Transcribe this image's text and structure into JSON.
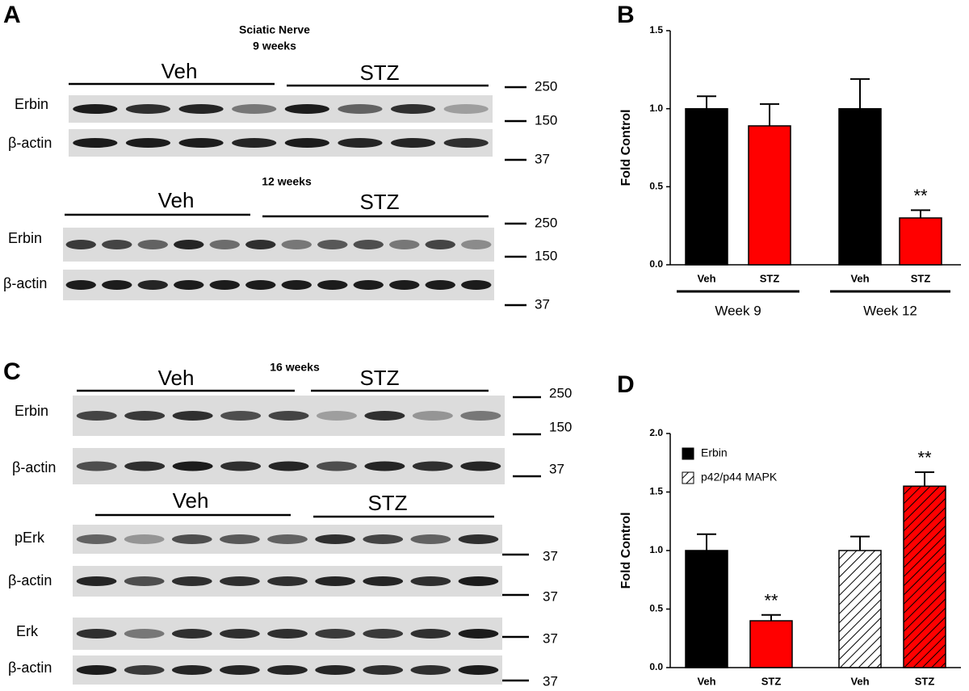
{
  "panel_labels": [
    "A",
    "B",
    "C",
    "D"
  ],
  "blots": [
    {
      "title": "Sciatic Nerve",
      "subtitle": "9 weeks",
      "groups": [
        "Veh",
        "STZ"
      ],
      "rows": [
        "Erbin",
        "β-actin"
      ],
      "markers": [
        250,
        150,
        37
      ]
    },
    {
      "subtitle": "12 weeks",
      "groups": [
        "Veh",
        "STZ"
      ],
      "rows": [
        "Erbin",
        "β-actin"
      ],
      "markers": [
        250,
        150,
        37
      ]
    },
    {
      "subtitle": "16 weeks",
      "groups": [
        "Veh",
        "STZ"
      ],
      "rows": [
        "Erbin",
        "β-actin"
      ],
      "markers": [
        250,
        150,
        37
      ]
    },
    {
      "groups": [
        "Veh",
        "STZ"
      ],
      "rows": [
        "pErk",
        "β-actin",
        "Erk",
        "β-actin"
      ],
      "markers": [
        37,
        37,
        37,
        37
      ]
    }
  ],
  "chart_data": [
    {
      "type": "bar",
      "y_label": "Fold Control",
      "categories": [
        "Veh",
        "STZ",
        "Veh",
        "STZ"
      ],
      "values": [
        1.0,
        0.89,
        1.0,
        0.3
      ],
      "errors": [
        0.08,
        0.14,
        0.19,
        0.05
      ],
      "colors": [
        "#000000",
        "#ff0000",
        "#000000",
        "#ff0000"
      ],
      "hatch": [
        false,
        false,
        false,
        false
      ],
      "significance": [
        null,
        null,
        null,
        "**"
      ],
      "groups": [
        "Week 9",
        "Week 12"
      ],
      "ylim": [
        0,
        1.5
      ],
      "yticks": [
        {
          "value": 0,
          "label": "0.0"
        },
        {
          "value": 0.5,
          "label": "0.5"
        },
        {
          "value": 1,
          "label": "1.0"
        },
        {
          "value": 1.5,
          "label": "1.5"
        }
      ]
    },
    {
      "type": "bar",
      "y_label": "Fold Control",
      "categories": [
        "Veh",
        "STZ",
        "Veh",
        "STZ"
      ],
      "values": [
        1.0,
        0.4,
        1.0,
        1.55
      ],
      "errors": [
        0.14,
        0.05,
        0.12,
        0.12
      ],
      "colors": [
        "#000000",
        "#ff0000",
        "#ffffff",
        "#ff0000"
      ],
      "hatch": [
        false,
        false,
        true,
        true
      ],
      "significance": [
        null,
        "**",
        null,
        "**"
      ],
      "legend": [
        {
          "name": "Erbin",
          "color": "#000000",
          "hatch": false
        },
        {
          "name": "p42/p44 MAPK",
          "color": "#ffffff",
          "hatch": true
        }
      ],
      "ylim": [
        0,
        2
      ],
      "yticks": [
        {
          "value": 0,
          "label": "0.0"
        },
        {
          "value": 0.5,
          "label": "0.5"
        },
        {
          "value": 1,
          "label": "1.0"
        },
        {
          "value": 1.5,
          "label": "1.5"
        },
        {
          "value": 2,
          "label": "2.0"
        }
      ]
    }
  ]
}
